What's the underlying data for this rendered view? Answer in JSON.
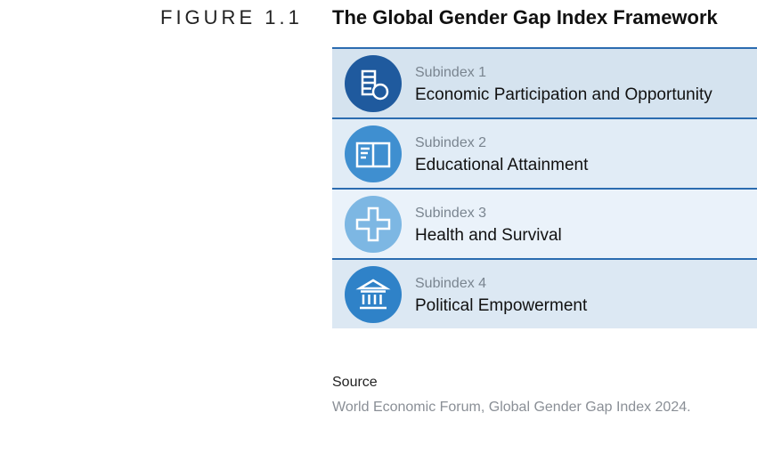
{
  "figure": {
    "label": "FIGURE 1.1",
    "title": "The Global Gender Gap Index Framework"
  },
  "subindexes": [
    {
      "label": "Subindex 1",
      "name": "Economic Participation and Opportunity",
      "icon": "economic-icon",
      "circle_color": "#1f5a9e",
      "row_color": "#d5e3ef"
    },
    {
      "label": "Subindex 2",
      "name": "Educational Attainment",
      "icon": "book-icon",
      "circle_color": "#3f8fd0",
      "row_color": "#e1ecf6"
    },
    {
      "label": "Subindex 3",
      "name": "Health and Survival",
      "icon": "cross-icon",
      "circle_color": "#7db7e3",
      "row_color": "#eaf2fa"
    },
    {
      "label": "Subindex 4",
      "name": "Political Empowerment",
      "icon": "institution-icon",
      "circle_color": "#2f82c8",
      "row_color": "#dce8f3"
    }
  ],
  "source": {
    "heading": "Source",
    "text": "World Economic Forum, Global Gender Gap Index 2024."
  }
}
